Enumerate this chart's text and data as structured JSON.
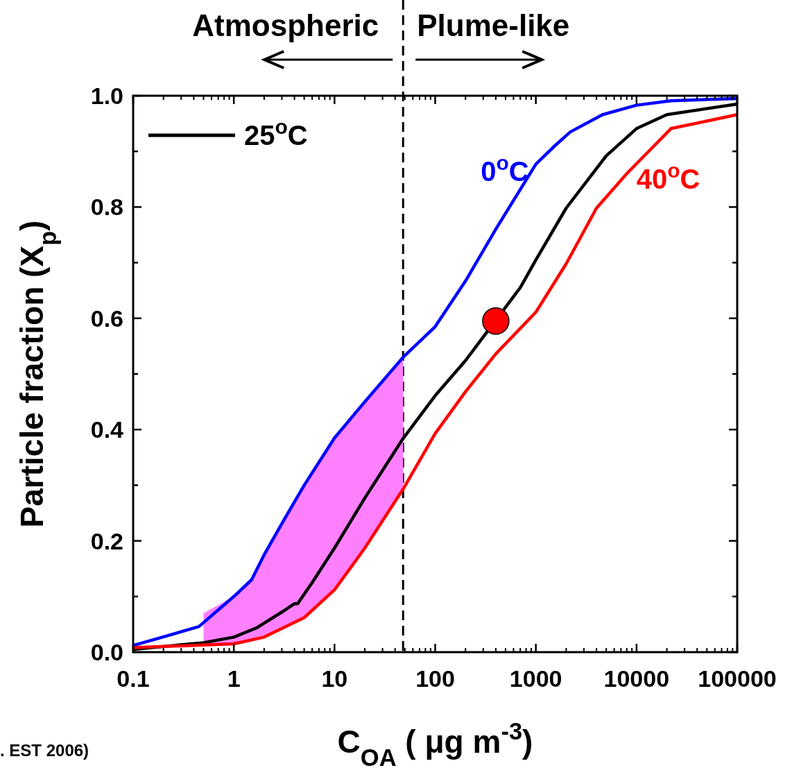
{
  "chart_data": {
    "type": "line",
    "xlabel": "C$_{OA}$ ( μg m$^{-3}$)",
    "ylabel": "Particle fraction (X$_{p}$)",
    "log": "x",
    "xlim": [
      0.1,
      100000
    ],
    "xticks": [
      0.1,
      1,
      10,
      100,
      1000,
      10000,
      100000
    ],
    "ylim": [
      0,
      1
    ],
    "yticks": [
      {
        "value": 0,
        "label": "0.0"
      },
      {
        "value": 0.1,
        "label": null
      },
      {
        "value": 0.2,
        "label": "0.2"
      },
      {
        "value": 0.3,
        "label": null
      },
      {
        "value": 0.4,
        "label": "0.4"
      },
      {
        "value": 0.5,
        "label": null
      },
      {
        "value": 0.6,
        "label": "0.6"
      },
      {
        "value": 0.7,
        "label": null
      },
      {
        "value": 0.8,
        "label": "0.8"
      },
      {
        "value": 0.9,
        "label": null
      },
      {
        "value": 1,
        "label": "1.0"
      }
    ],
    "legend": "top left",
    "grid": false,
    "line_style": "solid",
    "series": [
      {
        "name": "25$^{o}$C",
        "color": "#000000",
        "x": [
          0.1,
          0.5,
          1,
          1.7,
          3,
          4,
          4.3,
          6,
          10,
          20,
          48,
          100,
          200,
          700,
          1000,
          2000,
          5000,
          10000,
          20000,
          100000
        ],
        "values": [
          0.005,
          0.017,
          0.027,
          0.044,
          0.072,
          0.087,
          0.087,
          0.125,
          0.187,
          0.277,
          0.384,
          0.461,
          0.524,
          0.655,
          0.705,
          0.798,
          0.892,
          0.941,
          0.966,
          0.985
        ],
        "lower": [
          null,
          0.011,
          0.015,
          0.023,
          0.04,
          0.052,
          0.055,
          0.075,
          0.112,
          0.187,
          0.293,
          null,
          null,
          null,
          null,
          null,
          null,
          null,
          null,
          null
        ],
        "upper": [
          null,
          0.07,
          0.1,
          0.145,
          0.23,
          0.27,
          0.28,
          0.32,
          0.385,
          0.45,
          0.53,
          null,
          null,
          null,
          null,
          null,
          null,
          null,
          null,
          null
        ]
      },
      {
        "name": "0$^{o}$C",
        "color": "#0000ff",
        "x": [
          0.1,
          0.18,
          0.45,
          1,
          1.5,
          2,
          3.2,
          5,
          10,
          20,
          48,
          100,
          200,
          400,
          1000,
          1500,
          2200,
          4600,
          10000,
          22000,
          100000
        ],
        "values": [
          0.012,
          0.025,
          0.046,
          0.1,
          0.13,
          0.175,
          0.24,
          0.3,
          0.385,
          0.45,
          0.53,
          0.585,
          0.667,
          0.76,
          0.877,
          0.908,
          0.935,
          0.966,
          0.983,
          0.991,
          0.995
        ]
      },
      {
        "name": "40$^{o}$C",
        "color": "#ff0000",
        "x": [
          0.1,
          1,
          2,
          5,
          10,
          20,
          48,
          100,
          200,
          400,
          1000,
          2000,
          4000,
          8000,
          22000,
          100000
        ],
        "values": [
          0.008,
          0.015,
          0.027,
          0.062,
          0.112,
          0.187,
          0.293,
          0.393,
          0.468,
          0.536,
          0.611,
          0.698,
          0.798,
          0.86,
          0.941,
          0.966
        ]
      },
      {
        "type": "scatter",
        "color": "#ff0000",
        "marker": "circle",
        "x": [
          400
        ],
        "values": [
          0.595
        ]
      }
    ],
    "ref_lines": [
      {
        "axis": "x",
        "value": 48,
        "line_style": "dashed",
        "color": "#000000"
      }
    ],
    "annotations": [
      "Atmospheric",
      "Plume-like",
      ". EST 2006)"
    ]
  }
}
